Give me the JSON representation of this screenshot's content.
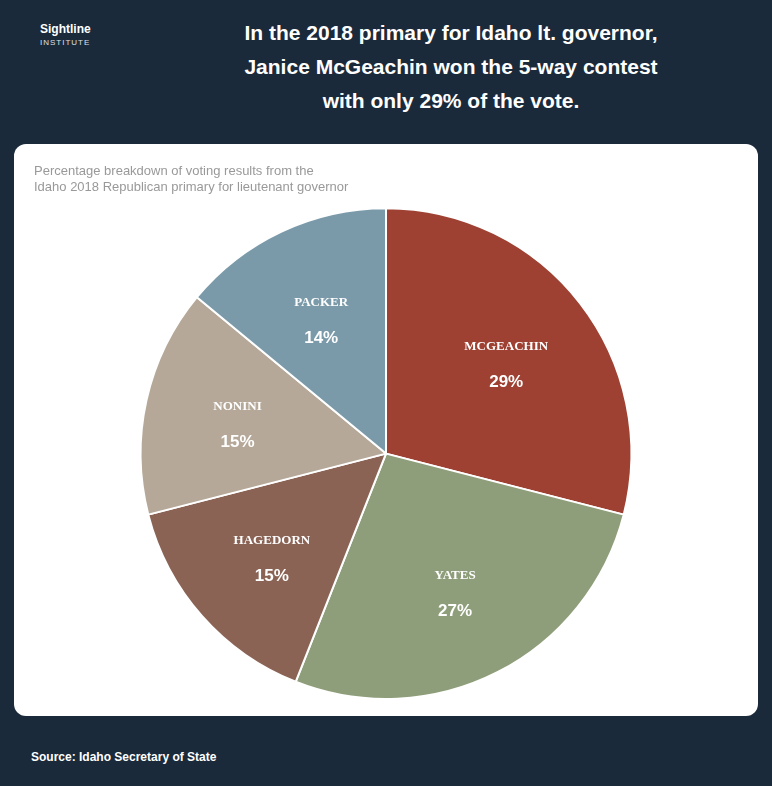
{
  "chart_data": {
    "type": "pie",
    "title": [
      "In the 2018 primary for Idaho lt. governor,",
      "Janice McGeachin won the 5-way contest",
      "with only 29% of the vote."
    ],
    "subtitle": [
      "Percentage breakdown of voting results from the",
      "Idaho 2018 Republican primary for lieutenant governor"
    ],
    "annotations": [
      "Sightline",
      "INSTITUTE"
    ],
    "source": "Source: Idaho Secretary of State",
    "categories": [
      "MCGEACHIN",
      "YATES",
      "HAGEDORN",
      "NONINI",
      "PACKER"
    ],
    "values": [
      29,
      27,
      15,
      15,
      14
    ],
    "value_labels": [
      "29%",
      "27%",
      "15%",
      "15%",
      "14%"
    ],
    "colors": [
      "#9e4132",
      "#8f9e7a",
      "#8b6355",
      "#b5a898",
      "#7a9aaa"
    ],
    "data_labels": true,
    "legend": false
  }
}
